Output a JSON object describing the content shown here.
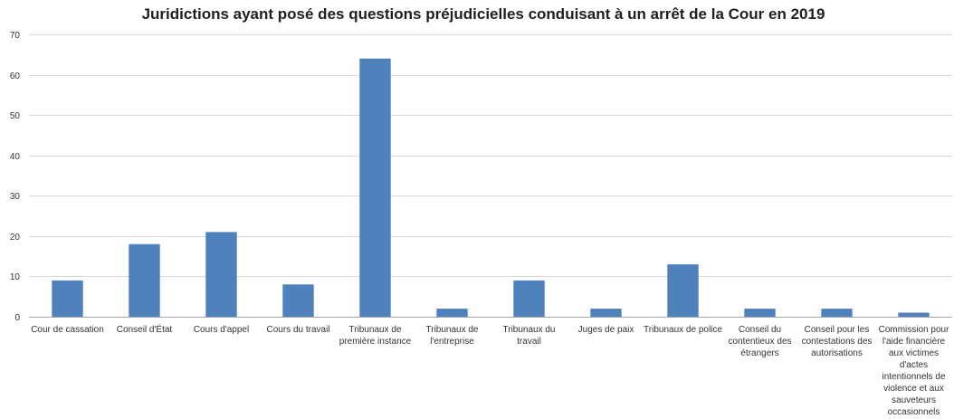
{
  "chart_data": {
    "type": "bar",
    "title": "Juridictions ayant posé des questions préjudicielles conduisant à un arrêt de la Cour en 2019",
    "xlabel": "",
    "ylabel": "",
    "ylim": [
      0,
      70
    ],
    "yticks": [
      0,
      10,
      20,
      30,
      40,
      50,
      60,
      70
    ],
    "grid": true,
    "legend": "none",
    "bar_color": "#4f81bd",
    "categories": [
      [
        "Cour de cassation"
      ],
      [
        "Conseil d'État"
      ],
      [
        "Cours d'appel"
      ],
      [
        "Cours du travail"
      ],
      [
        "Tribunaux de",
        "première instance"
      ],
      [
        "Tribunaux de",
        "l'entreprise"
      ],
      [
        "Tribunaux du",
        "travail"
      ],
      [
        "Juges de paix"
      ],
      [
        "Tribunaux de police"
      ],
      [
        "Conseil du",
        "contentieux des",
        "étrangers"
      ],
      [
        "Conseil pour les",
        "contestations des",
        "autorisations"
      ],
      [
        "Commission pour",
        "l'aide financière",
        "aux victimes",
        "d'actes",
        "intentionnels de",
        "violence et aux",
        "sauveteurs",
        "occasionnels"
      ]
    ],
    "values": [
      9,
      18,
      21,
      8,
      64,
      2,
      9,
      2,
      13,
      2,
      2,
      1
    ]
  }
}
